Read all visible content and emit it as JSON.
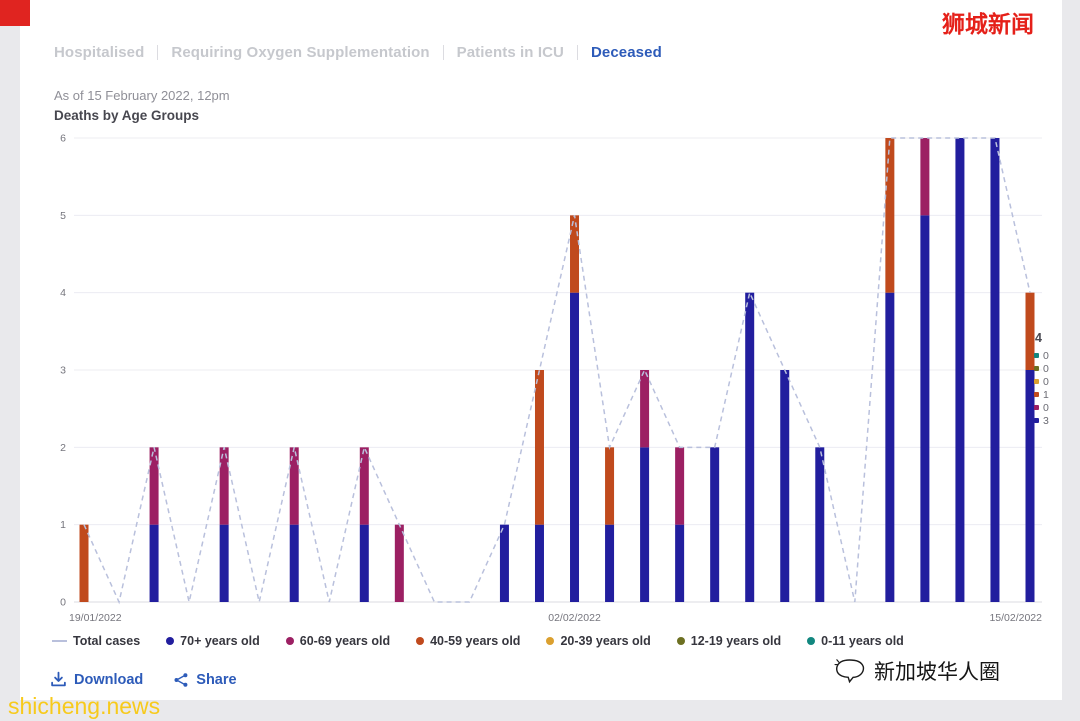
{
  "page": {
    "corner_color": "#e02420",
    "accent_blue": "#2d5bb9"
  },
  "tabs": [
    {
      "label": "Hospitalised",
      "active": false
    },
    {
      "label": "Requiring Oxygen Supplementation",
      "active": false
    },
    {
      "label": "Patients in ICU",
      "active": false
    },
    {
      "label": "Deceased",
      "active": true
    }
  ],
  "header": {
    "as_of": "As of 15 February 2022, 12pm",
    "chart_title": "Deaths by Age Groups"
  },
  "actions": {
    "download_label": "Download",
    "share_label": "Share"
  },
  "tooltip": {
    "total": "4",
    "rows": [
      {
        "series": "0-11 years old",
        "color": "#12877f",
        "value": "0"
      },
      {
        "series": "12-19 years old",
        "color": "#6d7022",
        "value": "0"
      },
      {
        "series": "20-39 years old",
        "color": "#dba02f",
        "value": "0"
      },
      {
        "series": "40-59 years old",
        "color": "#c04a1d",
        "value": "1"
      },
      {
        "series": "60-69 years old",
        "color": "#9c2063",
        "value": "0"
      },
      {
        "series": "70+ years old",
        "color": "#221e9e",
        "value": "3"
      }
    ]
  },
  "watermarks": {
    "top_right": "狮城新闻",
    "bottom_left": "shicheng.news",
    "bottom_right": "新加坡华人圈"
  },
  "chart_data": {
    "type": "bar",
    "stacked": true,
    "title": "Deaths by Age Groups",
    "ylim": [
      0,
      6
    ],
    "yticks": [
      0,
      1,
      2,
      3,
      4,
      5,
      6
    ],
    "grid": true,
    "legend_position": "bottom",
    "dates": [
      "19/01/2022",
      "20/01/2022",
      "21/01/2022",
      "22/01/2022",
      "23/01/2022",
      "24/01/2022",
      "25/01/2022",
      "26/01/2022",
      "27/01/2022",
      "28/01/2022",
      "29/01/2022",
      "30/01/2022",
      "31/01/2022",
      "01/02/2022",
      "02/02/2022",
      "03/02/2022",
      "04/02/2022",
      "05/02/2022",
      "06/02/2022",
      "07/02/2022",
      "08/02/2022",
      "09/02/2022",
      "10/02/2022",
      "11/02/2022",
      "12/02/2022",
      "13/02/2022",
      "14/02/2022",
      "15/02/2022"
    ],
    "x_tick_labels": [
      {
        "index": 0,
        "label": "19/01/2022"
      },
      {
        "index": 14,
        "label": "02/02/2022"
      },
      {
        "index": 27,
        "label": "15/02/2022"
      }
    ],
    "series": [
      {
        "name": "70+ years old",
        "color": "#221e9e",
        "values": [
          0,
          0,
          1,
          0,
          1,
          0,
          1,
          0,
          1,
          0,
          0,
          0,
          1,
          1,
          4,
          1,
          2,
          1,
          2,
          4,
          3,
          2,
          0,
          4,
          5,
          6,
          6,
          3
        ]
      },
      {
        "name": "60-69 years old",
        "color": "#9c2063",
        "values": [
          0,
          0,
          1,
          0,
          1,
          0,
          1,
          0,
          1,
          1,
          0,
          0,
          0,
          0,
          0,
          0,
          1,
          1,
          0,
          0,
          0,
          0,
          0,
          0,
          1,
          0,
          0,
          0
        ]
      },
      {
        "name": "40-59 years old",
        "color": "#c04a1d",
        "values": [
          1,
          0,
          0,
          0,
          0,
          0,
          0,
          0,
          0,
          0,
          0,
          0,
          0,
          2,
          1,
          1,
          0,
          0,
          0,
          0,
          0,
          0,
          0,
          2,
          0,
          0,
          0,
          1
        ]
      },
      {
        "name": "20-39 years old",
        "color": "#dba02f",
        "values": [
          0,
          0,
          0,
          0,
          0,
          0,
          0,
          0,
          0,
          0,
          0,
          0,
          0,
          0,
          0,
          0,
          0,
          0,
          0,
          0,
          0,
          0,
          0,
          0,
          0,
          0,
          0,
          0
        ]
      },
      {
        "name": "12-19 years old",
        "color": "#6d7022",
        "values": [
          0,
          0,
          0,
          0,
          0,
          0,
          0,
          0,
          0,
          0,
          0,
          0,
          0,
          0,
          0,
          0,
          0,
          0,
          0,
          0,
          0,
          0,
          0,
          0,
          0,
          0,
          0,
          0
        ]
      },
      {
        "name": "0-11 years old",
        "color": "#12877f",
        "values": [
          0,
          0,
          0,
          0,
          0,
          0,
          0,
          0,
          0,
          0,
          0,
          0,
          0,
          0,
          0,
          0,
          0,
          0,
          0,
          0,
          0,
          0,
          0,
          0,
          0,
          0,
          0,
          0
        ]
      }
    ],
    "totals": [
      1,
      0,
      2,
      0,
      2,
      0,
      2,
      0,
      2,
      1,
      0,
      0,
      1,
      3,
      5,
      2,
      3,
      2,
      2,
      4,
      3,
      2,
      0,
      6,
      6,
      6,
      6,
      4
    ],
    "line": {
      "name": "Total cases",
      "color": "#b9c0dc",
      "style": "dashed"
    }
  }
}
